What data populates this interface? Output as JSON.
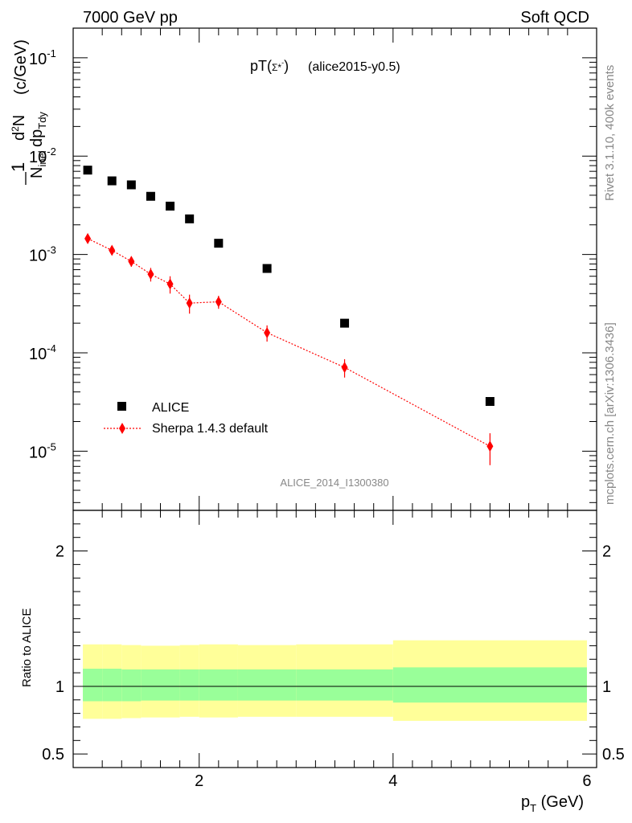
{
  "header": {
    "left": "7000 GeV pp",
    "right": "Soft QCD"
  },
  "plot_title": {
    "main": "pT(",
    "particle": "Σ*",
    "superscript": "-",
    "close": ")",
    "tag": "(alice2015-y0.5)"
  },
  "side_labels": {
    "rivet": "Rivet 3.1.10,  400k events",
    "mcplots": "mcplots.cern.ch [arXiv:1306.3436]"
  },
  "watermark": "ALICE_2014_I1300380",
  "legend": {
    "data_label": "ALICE",
    "mc_label": "Sherpa 1.4.3 default"
  },
  "colors": {
    "data": "#000000",
    "mc": "#ff0000",
    "band_inner": "#99ff99",
    "band_outer": "#ffff99"
  },
  "chart_data": [
    {
      "type": "scatter",
      "log_y": true,
      "ylabel": "1/N_inel d²N/dp_Tdy (c/GeV)",
      "ylim": [
        2.5e-06,
        0.2
      ],
      "xlim": [
        0.7,
        6.1
      ],
      "y_ticks": [
        "10^-5",
        "10^-4",
        "10^-3",
        "10^-2",
        "10^-1"
      ],
      "series": [
        {
          "name": "ALICE",
          "x": [
            0.85,
            1.1,
            1.3,
            1.5,
            1.7,
            1.9,
            2.2,
            2.7,
            3.5,
            5.0
          ],
          "y": [
            0.0072,
            0.0056,
            0.0051,
            0.0039,
            0.0031,
            0.0023,
            0.0013,
            0.00072,
            0.0002,
            3.2e-05
          ]
        },
        {
          "name": "Sherpa 1.4.3 default",
          "x": [
            0.85,
            1.1,
            1.3,
            1.5,
            1.7,
            1.9,
            2.2,
            2.7,
            3.5,
            5.0
          ],
          "y": [
            0.00145,
            0.0011,
            0.00085,
            0.00063,
            0.0005,
            0.00032,
            0.00033,
            0.00016,
            7.1e-05,
            1.12e-05
          ],
          "err": [
            0.0001,
            0.0001,
            0.0001,
            0.0001,
            0.0001,
            7e-05,
            5e-05,
            3e-05,
            1.5e-05,
            4e-06
          ]
        }
      ]
    },
    {
      "type": "area",
      "ylabel": "Ratio to ALICE",
      "xlabel": "p_T (GeV)",
      "ylim": [
        0.4,
        2.3
      ],
      "xlim": [
        0.7,
        6.1
      ],
      "y_ticks": [
        "0.5",
        "1",
        "2"
      ],
      "x_ticks": [
        "2",
        "4",
        "6"
      ],
      "reference_line": 1,
      "bins": [
        {
          "x0": 0.7,
          "x1": 1.0,
          "inner": [
            0.89,
            1.13
          ],
          "outer": [
            0.76,
            1.31
          ]
        },
        {
          "x0": 1.0,
          "x1": 1.2,
          "inner": [
            0.89,
            1.13
          ],
          "outer": [
            0.76,
            1.31
          ]
        },
        {
          "x0": 1.2,
          "x1": 1.4,
          "inner": [
            0.89,
            1.125
          ],
          "outer": [
            0.765,
            1.305
          ]
        },
        {
          "x0": 1.4,
          "x1": 1.6,
          "inner": [
            0.895,
            1.125
          ],
          "outer": [
            0.77,
            1.3
          ]
        },
        {
          "x0": 1.6,
          "x1": 1.8,
          "inner": [
            0.895,
            1.125
          ],
          "outer": [
            0.77,
            1.3
          ]
        },
        {
          "x0": 1.8,
          "x1": 2.0,
          "inner": [
            0.895,
            1.125
          ],
          "outer": [
            0.775,
            1.305
          ]
        },
        {
          "x0": 2.0,
          "x1": 2.4,
          "inner": [
            0.895,
            1.125
          ],
          "outer": [
            0.77,
            1.31
          ]
        },
        {
          "x0": 2.4,
          "x1": 3.0,
          "inner": [
            0.895,
            1.125
          ],
          "outer": [
            0.775,
            1.305
          ]
        },
        {
          "x0": 3.0,
          "x1": 4.0,
          "inner": [
            0.895,
            1.125
          ],
          "outer": [
            0.775,
            1.31
          ]
        },
        {
          "x0": 4.0,
          "x1": 6.0,
          "inner": [
            0.88,
            1.14
          ],
          "outer": [
            0.745,
            1.34
          ]
        }
      ]
    }
  ]
}
